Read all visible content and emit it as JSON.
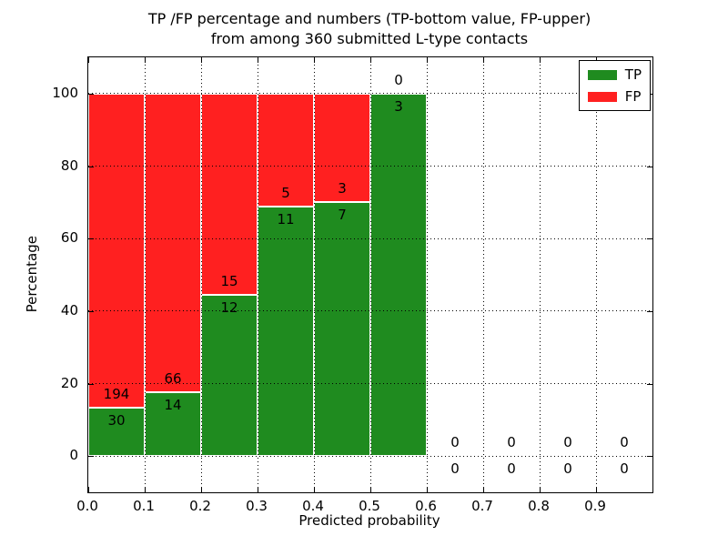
{
  "figure": {
    "title_line1": "TP /FP percentage and numbers (TP-bottom value, FP-upper)",
    "title_line2": "from among 360 submitted L-type contacts"
  },
  "chart_data": {
    "type": "bar",
    "stacked": true,
    "title": "TP /FP percentage and numbers (TP-bottom value, FP-upper) from among 360 submitted L-type contacts",
    "xlabel": "Predicted probability",
    "ylabel": "Percentage",
    "xlim": [
      0.0,
      1.0
    ],
    "ylim": [
      -10,
      110
    ],
    "grid": "dotted",
    "legend_position": "upper right",
    "total_contacts": 360,
    "x_ticks": [
      "0.0",
      "0.1",
      "0.2",
      "0.3",
      "0.4",
      "0.5",
      "0.6",
      "0.7",
      "0.8",
      "0.9"
    ],
    "y_ticks": [
      0,
      20,
      40,
      60,
      80,
      100
    ],
    "legend": [
      {
        "label": "TP",
        "color": "#1f8b1f"
      },
      {
        "label": "FP",
        "color": "#ff2020"
      }
    ],
    "colors": {
      "tp": "#1f8b1f",
      "fp": "#ff2020"
    },
    "bins": [
      {
        "x0": 0.0,
        "x1": 0.1,
        "tp": 30,
        "fp": 194,
        "tp_pct": 13.39
      },
      {
        "x0": 0.1,
        "x1": 0.2,
        "tp": 14,
        "fp": 66,
        "tp_pct": 17.5
      },
      {
        "x0": 0.2,
        "x1": 0.3,
        "tp": 12,
        "fp": 15,
        "tp_pct": 44.44
      },
      {
        "x0": 0.3,
        "x1": 0.4,
        "tp": 11,
        "fp": 5,
        "tp_pct": 68.75
      },
      {
        "x0": 0.4,
        "x1": 0.5,
        "tp": 7,
        "fp": 3,
        "tp_pct": 70.0
      },
      {
        "x0": 0.5,
        "x1": 0.6,
        "tp": 3,
        "fp": 0,
        "tp_pct": 100.0
      },
      {
        "x0": 0.6,
        "x1": 0.7,
        "tp": 0,
        "fp": 0,
        "tp_pct": 0
      },
      {
        "x0": 0.7,
        "x1": 0.8,
        "tp": 0,
        "fp": 0,
        "tp_pct": 0
      },
      {
        "x0": 0.8,
        "x1": 0.9,
        "tp": 0,
        "fp": 0,
        "tp_pct": 0
      },
      {
        "x0": 0.9,
        "x1": 1.0,
        "tp": 0,
        "fp": 0,
        "tp_pct": 0
      }
    ]
  }
}
